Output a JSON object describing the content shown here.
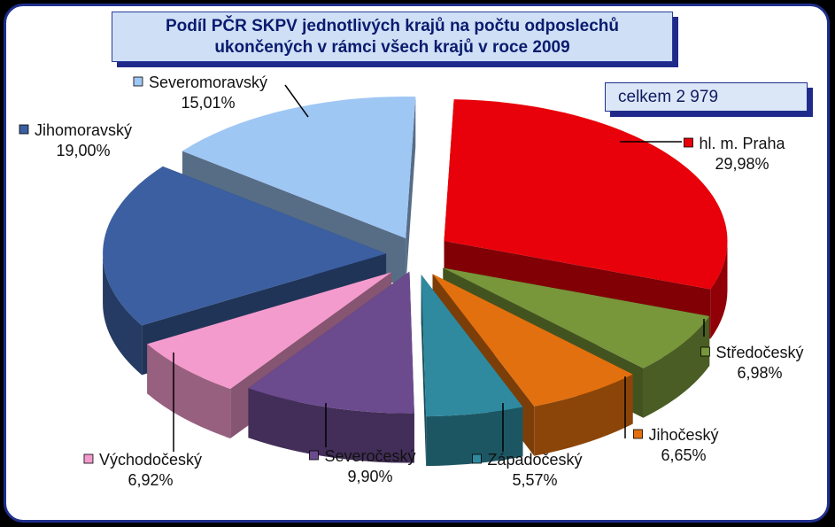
{
  "title_line1": "Podíl PČR SKPV jednotlivých krajů na počtu odposlechů",
  "title_line2": "ukončených v rámci všech krajů v roce 2009",
  "total_label": "celkem 2 979",
  "chart_data": {
    "type": "pie",
    "title": "Podíl PČR SKPV jednotlivých krajů na počtu odposlechů ukončených v rámci všech krajů v roce 2009",
    "legend_placement": "labels next to slices",
    "slices": [
      {
        "name": "hl. m. Praha",
        "value": 29.98,
        "label": "29,98%",
        "color": "#e8000a"
      },
      {
        "name": "Středočeský",
        "value": 6.98,
        "label": "6,98%",
        "color": "#78963a"
      },
      {
        "name": "Jihočeský",
        "value": 6.65,
        "label": "6,65%",
        "color": "#e2700f"
      },
      {
        "name": "Západočeský",
        "value": 5.57,
        "label": "5,57%",
        "color": "#2f8aa0"
      },
      {
        "name": "Severočeský",
        "value": 9.9,
        "label": "9,90%",
        "color": "#6b4a8e"
      },
      {
        "name": "Východočeský",
        "value": 6.92,
        "label": "6,92%",
        "color": "#f49bcd"
      },
      {
        "name": "Jihomoravský",
        "value": 19.0,
        "label": "19,00%",
        "color": "#3b5fa0"
      },
      {
        "name": "Severomoravský",
        "value": 15.01,
        "label": "15,01%",
        "color": "#9fc7f4"
      }
    ]
  }
}
